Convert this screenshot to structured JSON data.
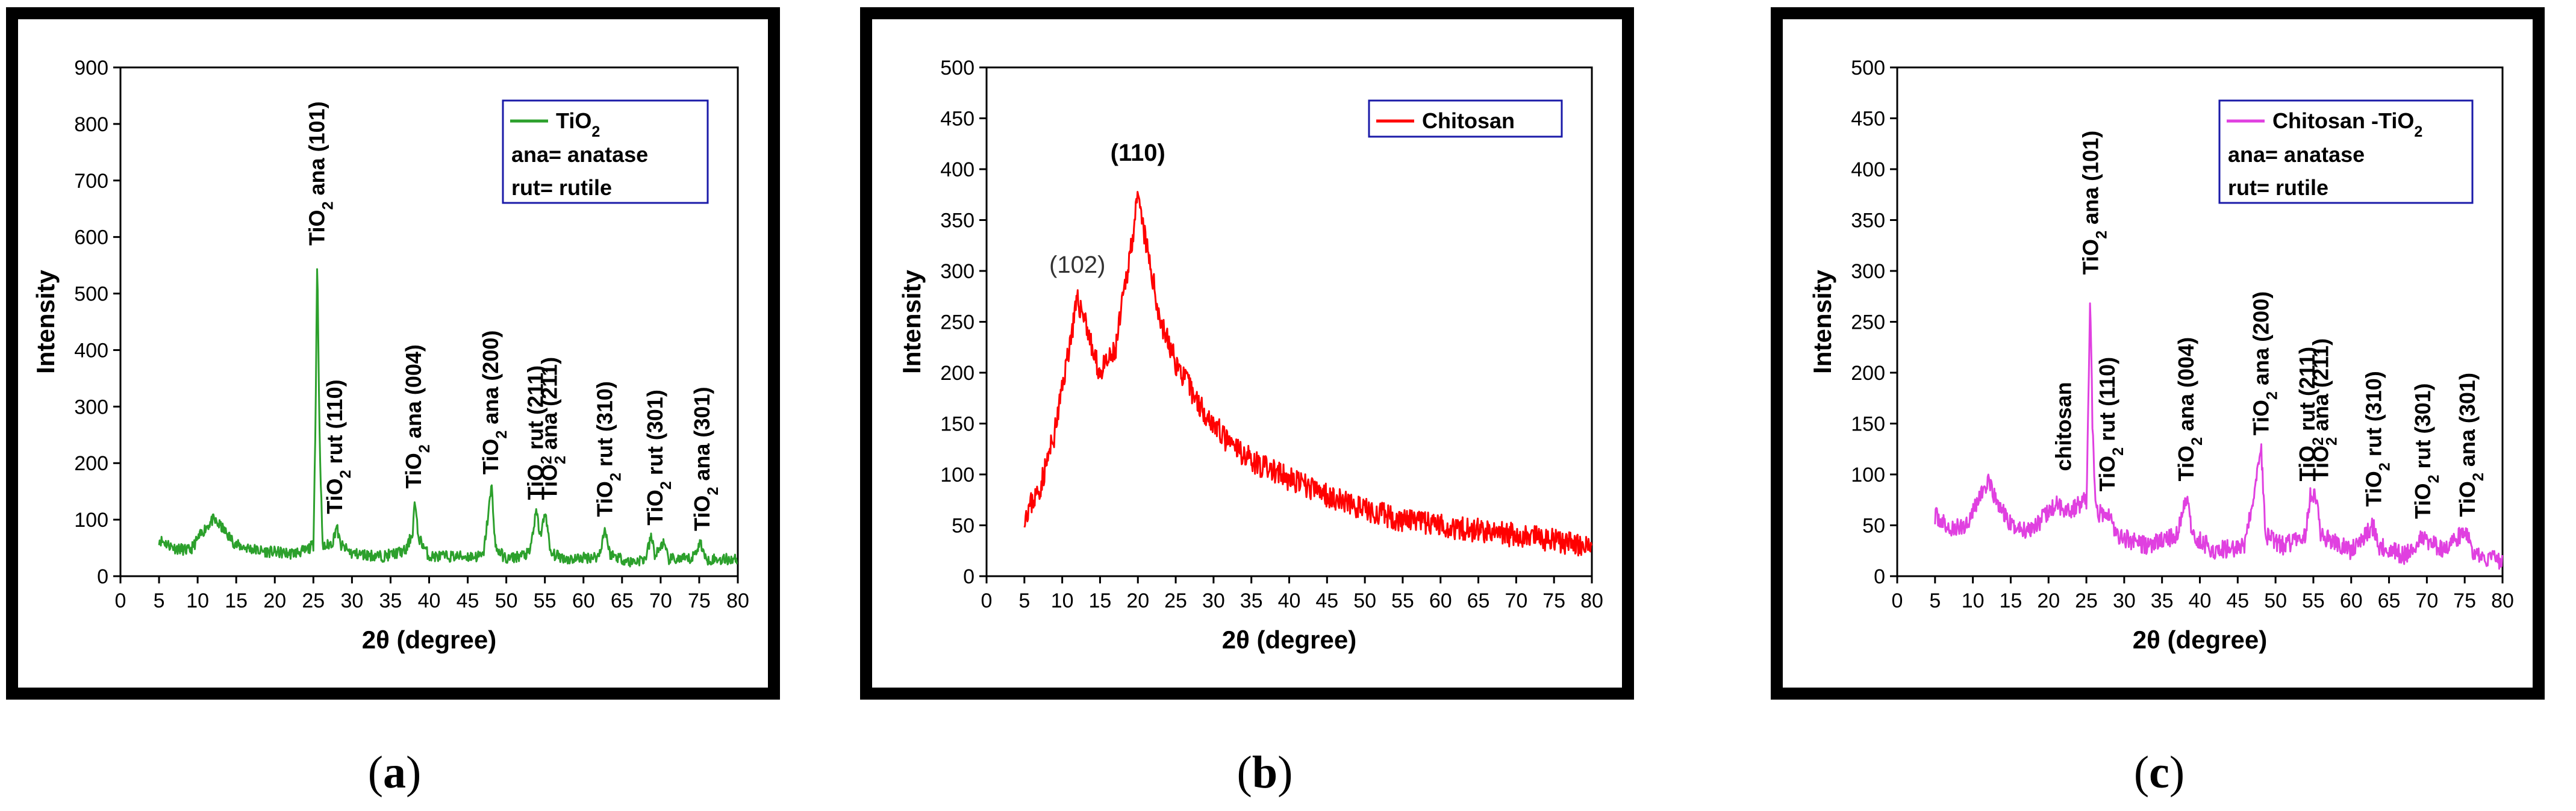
{
  "chart_data": [
    {
      "type": "line",
      "panel": "a",
      "xlabel": "2θ (degree)",
      "ylabel": "Intensity",
      "xlim": [
        0,
        80
      ],
      "ylim": [
        0,
        900
      ],
      "xticks": [
        0,
        5,
        10,
        15,
        20,
        25,
        30,
        35,
        40,
        45,
        50,
        55,
        60,
        65,
        70,
        75,
        80
      ],
      "yticks": [
        0,
        100,
        200,
        300,
        400,
        500,
        600,
        700,
        800,
        900
      ],
      "color": "#2ca02c",
      "legend": {
        "position": "top-right",
        "series_label": "TiO",
        "series_sub": "2",
        "notes": [
          "ana= anatase",
          "rut= rutile"
        ]
      },
      "baseline": [
        [
          5,
          65
        ],
        [
          7,
          50
        ],
        [
          9,
          45
        ],
        [
          11,
          85
        ],
        [
          12,
          100
        ],
        [
          13,
          88
        ],
        [
          15,
          55
        ],
        [
          18,
          45
        ],
        [
          22,
          40
        ],
        [
          24,
          45
        ],
        [
          25,
          55
        ],
        [
          25.3,
          300
        ],
        [
          25.5,
          570
        ],
        [
          25.8,
          250
        ],
        [
          26.2,
          50
        ],
        [
          27.5,
          60
        ],
        [
          28,
          90
        ],
        [
          28.5,
          55
        ],
        [
          30,
          40
        ],
        [
          34,
          35
        ],
        [
          37,
          45
        ],
        [
          37.9,
          80
        ],
        [
          38.1,
          135
        ],
        [
          38.6,
          70
        ],
        [
          40,
          35
        ],
        [
          44,
          35
        ],
        [
          47,
          35
        ],
        [
          48.1,
          160
        ],
        [
          48.6,
          50
        ],
        [
          50,
          30
        ],
        [
          53,
          40
        ],
        [
          53.9,
          115
        ],
        [
          54.4,
          70
        ],
        [
          55.1,
          115
        ],
        [
          55.7,
          40
        ],
        [
          58,
          30
        ],
        [
          62,
          35
        ],
        [
          62.8,
          85
        ],
        [
          63.4,
          40
        ],
        [
          66,
          25
        ],
        [
          68,
          30
        ],
        [
          68.8,
          70
        ],
        [
          69.3,
          35
        ],
        [
          70.3,
          60
        ],
        [
          71,
          30
        ],
        [
          74,
          30
        ],
        [
          75.2,
          60
        ],
        [
          75.8,
          30
        ],
        [
          80,
          30
        ]
      ],
      "noise": 10,
      "peak_labels": [
        {
          "formula": "TiO",
          "sub": "2",
          "rest": " ana (101)",
          "x": 25.5,
          "y": 570
        },
        {
          "formula": "TiO",
          "sub": "2",
          "rest": " rut (110)",
          "x": 27.8,
          "y": 95
        },
        {
          "formula": "TiO",
          "sub": "2",
          "rest": " ana (004)",
          "x": 38,
          "y": 140
        },
        {
          "formula": "TiO",
          "sub": "2",
          "rest": " ana (200)",
          "x": 48,
          "y": 165
        },
        {
          "formula": "TiO",
          "sub": "2",
          "rest": " rut (211)",
          "x": 53.8,
          "y": 120
        },
        {
          "formula": "TiO",
          "sub": "2",
          "rest": " ana (211)",
          "x": 55.6,
          "y": 120
        },
        {
          "formula": "TiO",
          "sub": "2",
          "rest": " rut (310)",
          "x": 62.8,
          "y": 90
        },
        {
          "formula": "TiO",
          "sub": "2",
          "rest": " rut (301)",
          "x": 69.3,
          "y": 75
        },
        {
          "formula": "TiO",
          "sub": "2",
          "rest": " ana (301)",
          "x": 75.4,
          "y": 65
        }
      ]
    },
    {
      "type": "line",
      "panel": "b",
      "xlabel": "2θ (degree)",
      "ylabel": "Intensity",
      "xlim": [
        0,
        80
      ],
      "ylim": [
        0,
        500
      ],
      "xticks": [
        0,
        5,
        10,
        15,
        20,
        25,
        30,
        35,
        40,
        45,
        50,
        55,
        60,
        65,
        70,
        75,
        80
      ],
      "yticks": [
        0,
        50,
        100,
        150,
        200,
        250,
        300,
        350,
        400,
        450,
        500
      ],
      "color": "#ff0000",
      "legend": {
        "position": "top-right",
        "series_label": "Chitosan",
        "series_sub": "",
        "notes": []
      },
      "baseline": [
        [
          5,
          60
        ],
        [
          7,
          85
        ],
        [
          9,
          140
        ],
        [
          11,
          230
        ],
        [
          12,
          270
        ],
        [
          13,
          255
        ],
        [
          14,
          220
        ],
        [
          15,
          200
        ],
        [
          17,
          220
        ],
        [
          19,
          320
        ],
        [
          20,
          370
        ],
        [
          21,
          330
        ],
        [
          23,
          250
        ],
        [
          25,
          210
        ],
        [
          28,
          170
        ],
        [
          32,
          130
        ],
        [
          36,
          110
        ],
        [
          40,
          95
        ],
        [
          45,
          80
        ],
        [
          50,
          65
        ],
        [
          55,
          55
        ],
        [
          60,
          50
        ],
        [
          65,
          45
        ],
        [
          70,
          40
        ],
        [
          75,
          35
        ],
        [
          80,
          28
        ]
      ],
      "noise": 12,
      "peak_labels": [
        {
          "text": "(102)",
          "x": 12,
          "y": 290,
          "bold": false
        },
        {
          "text": "(110)",
          "x": 20,
          "y": 400,
          "bold": true
        }
      ]
    },
    {
      "type": "line",
      "panel": "c",
      "xlabel": "2θ (degree)",
      "ylabel": "Intensity",
      "xlim": [
        0,
        80
      ],
      "ylim": [
        0,
        500
      ],
      "xticks": [
        0,
        5,
        10,
        15,
        20,
        25,
        30,
        35,
        40,
        45,
        50,
        55,
        60,
        65,
        70,
        75,
        80
      ],
      "yticks": [
        0,
        50,
        100,
        150,
        200,
        250,
        300,
        350,
        400,
        450,
        500
      ],
      "color": "#e040e0",
      "legend": {
        "position": "top-right",
        "series_label": "Chitosan -TiO",
        "series_sub": "2",
        "notes": [
          "ana= anatase",
          "rut= rutile"
        ]
      },
      "baseline": [
        [
          5,
          60
        ],
        [
          7,
          45
        ],
        [
          9,
          50
        ],
        [
          11,
          80
        ],
        [
          12,
          92
        ],
        [
          13,
          75
        ],
        [
          15,
          50
        ],
        [
          17,
          45
        ],
        [
          19,
          55
        ],
        [
          21,
          70
        ],
        [
          23,
          65
        ],
        [
          25,
          75
        ],
        [
          25.3,
          180
        ],
        [
          25.5,
          283
        ],
        [
          25.8,
          150
        ],
        [
          26.3,
          60
        ],
        [
          27.8,
          65
        ],
        [
          29,
          40
        ],
        [
          33,
          30
        ],
        [
          37,
          40
        ],
        [
          38.2,
          78
        ],
        [
          39,
          40
        ],
        [
          42,
          25
        ],
        [
          46,
          30
        ],
        [
          48.1,
          125
        ],
        [
          48.7,
          40
        ],
        [
          51,
          30
        ],
        [
          54,
          40
        ],
        [
          54.6,
          80
        ],
        [
          55.3,
          78
        ],
        [
          56,
          40
        ],
        [
          60,
          25
        ],
        [
          63,
          50
        ],
        [
          63.6,
          30
        ],
        [
          67,
          20
        ],
        [
          69.5,
          40
        ],
        [
          70.2,
          35
        ],
        [
          72,
          25
        ],
        [
          75.3,
          45
        ],
        [
          76,
          20
        ],
        [
          80,
          15
        ]
      ],
      "noise": 9,
      "peak_labels": [
        {
          "text": "chitosan",
          "x": 22,
          "y": 95
        },
        {
          "formula": "TiO",
          "sub": "2",
          "rest": " ana (101)",
          "x": 25.6,
          "y": 288
        },
        {
          "formula": "TiO",
          "sub": "2",
          "rest": " rut (110)",
          "x": 27.8,
          "y": 75
        },
        {
          "formula": "TiO",
          "sub": "2",
          "rest": " ana (004)",
          "x": 38.2,
          "y": 85
        },
        {
          "formula": "TiO",
          "sub": "2",
          "rest": " ana (200)",
          "x": 48.1,
          "y": 130
        },
        {
          "formula": "TiO",
          "sub": "2",
          "rest": " rut (211)",
          "x": 54.2,
          "y": 85
        },
        {
          "formula": "TiO",
          "sub": "2",
          "rest": " ana (211)",
          "x": 56,
          "y": 85
        },
        {
          "formula": "TiO",
          "sub": "2",
          "rest": " rut (310)",
          "x": 63,
          "y": 60
        },
        {
          "formula": "TiO",
          "sub": "2",
          "rest": " rut (301)",
          "x": 69.5,
          "y": 48
        },
        {
          "formula": "TiO",
          "sub": "2",
          "rest": " ana (301)",
          "x": 75.4,
          "y": 50
        }
      ]
    }
  ],
  "captions": {
    "a": "a",
    "b": "b",
    "c": "c"
  }
}
